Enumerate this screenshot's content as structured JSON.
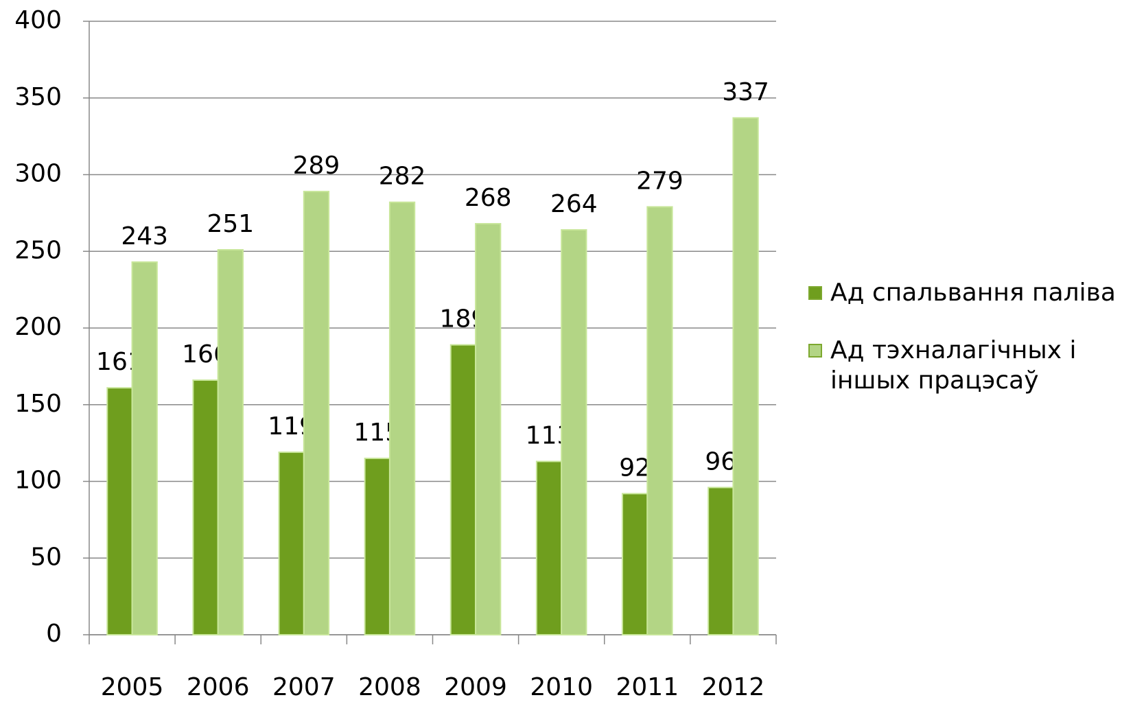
{
  "chart_data": {
    "type": "bar",
    "categories": [
      "2005",
      "2006",
      "2007",
      "2008",
      "2009",
      "2010",
      "2011",
      "2012"
    ],
    "series": [
      {
        "name": "Ад спальвання паліва",
        "color": "#6f9e1e",
        "values": [
          161,
          166,
          119,
          115,
          189,
          113,
          92,
          96
        ]
      },
      {
        "name": "Ад тэхналагічных і іншых працэсаў",
        "color": "#b3d585",
        "values": [
          243,
          251,
          289,
          282,
          268,
          264,
          279,
          337
        ]
      }
    ],
    "ylim": [
      0,
      400
    ],
    "yticks": [
      0,
      50,
      100,
      150,
      200,
      250,
      300,
      350,
      400
    ],
    "grid": true,
    "legend": "right"
  }
}
